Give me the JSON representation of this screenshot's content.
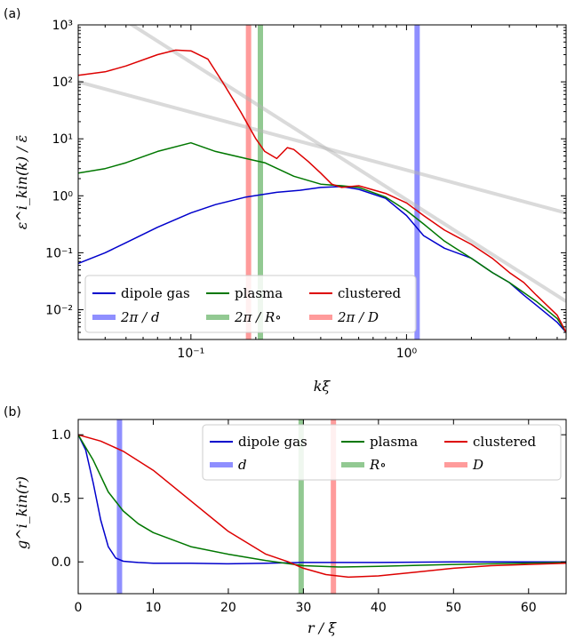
{
  "chart_data": [
    {
      "type": "line",
      "panel_label": "(a)",
      "xlabel": "kξ",
      "ylabel": "ε^i_kin(k) / ε̄",
      "xscale": "log",
      "yscale": "log",
      "xlim": [
        0.03,
        5.5
      ],
      "ylim": [
        0.003,
        1000
      ],
      "x_ticks": [
        {
          "v": 0.1,
          "label": "10⁻¹"
        },
        {
          "v": 1,
          "label": "10⁰"
        }
      ],
      "y_ticks": [
        {
          "v": 1000,
          "label": "10³"
        },
        {
          "v": 100,
          "label": "10²"
        },
        {
          "v": 10,
          "label": "10¹"
        },
        {
          "v": 1,
          "label": "10⁰"
        },
        {
          "v": 0.1,
          "label": "10⁻¹"
        },
        {
          "v": 0.01,
          "label": "10⁻²"
        }
      ],
      "grid": false,
      "legend_position": "lower-left",
      "series": [
        {
          "name": "dipole gas",
          "color": "#0000cc",
          "x": [
            0.03,
            0.04,
            0.05,
            0.07,
            0.1,
            0.13,
            0.18,
            0.25,
            0.32,
            0.4,
            0.5,
            0.6,
            0.8,
            1.0,
            1.2,
            1.5,
            2.0,
            2.5,
            3.0,
            3.5,
            4.0,
            5.0,
            5.5
          ],
          "y": [
            0.065,
            0.1,
            0.15,
            0.28,
            0.5,
            0.7,
            0.95,
            1.15,
            1.25,
            1.4,
            1.45,
            1.3,
            0.9,
            0.45,
            0.2,
            0.12,
            0.08,
            0.045,
            0.03,
            0.018,
            0.012,
            0.006,
            0.004
          ]
        },
        {
          "name": "plasma",
          "color": "#007700",
          "x": [
            0.03,
            0.04,
            0.05,
            0.07,
            0.1,
            0.13,
            0.18,
            0.22,
            0.3,
            0.4,
            0.5,
            0.6,
            0.8,
            1.0,
            1.2,
            1.5,
            2.0,
            2.5,
            3.0,
            3.5,
            4.0,
            5.0,
            5.5
          ],
          "y": [
            2.5,
            3.0,
            3.8,
            6.0,
            8.5,
            6.0,
            4.5,
            3.8,
            2.2,
            1.6,
            1.5,
            1.4,
            0.95,
            0.55,
            0.32,
            0.16,
            0.08,
            0.045,
            0.03,
            0.02,
            0.014,
            0.007,
            0.004
          ]
        },
        {
          "name": "clustered",
          "color": "#dd0000",
          "x": [
            0.03,
            0.04,
            0.05,
            0.07,
            0.085,
            0.1,
            0.12,
            0.14,
            0.17,
            0.2,
            0.22,
            0.25,
            0.28,
            0.3,
            0.35,
            0.4,
            0.45,
            0.5,
            0.6,
            0.8,
            1.0,
            1.2,
            1.5,
            2.0,
            2.5,
            3.0,
            3.5,
            4.0,
            5.0,
            5.5
          ],
          "y": [
            130,
            150,
            190,
            300,
            360,
            350,
            250,
            100,
            30,
            10,
            6,
            4.5,
            7,
            6.5,
            4,
            2.5,
            1.6,
            1.4,
            1.5,
            1.1,
            0.75,
            0.45,
            0.25,
            0.14,
            0.08,
            0.045,
            0.03,
            0.018,
            0.008,
            0.004
          ]
        }
      ],
      "reference_lines": [
        {
          "x": [
            0.03,
            5.5
          ],
          "y": [
            4000,
            0.014
          ],
          "color": "#b5b5b5"
        },
        {
          "x": [
            0.03,
            5.5
          ],
          "y": [
            100,
            0.5
          ],
          "color": "#b5b5b5"
        }
      ],
      "vertical_lines": [
        {
          "name": "2π / d",
          "x": 1.12,
          "color": "#7b7bff"
        },
        {
          "name": "2π / R∘",
          "x": 0.21,
          "color": "#7fbf7f"
        },
        {
          "name": "2π / D",
          "x": 0.185,
          "color": "#ff8a8a"
        }
      ]
    },
    {
      "type": "line",
      "panel_label": "(b)",
      "xlabel": "r / ξ",
      "ylabel": "g^i_kin(r)",
      "xlim": [
        0,
        65
      ],
      "ylim": [
        -0.25,
        1.12
      ],
      "x_ticks": [
        {
          "v": 0,
          "label": "0"
        },
        {
          "v": 10,
          "label": "10"
        },
        {
          "v": 20,
          "label": "20"
        },
        {
          "v": 30,
          "label": "30"
        },
        {
          "v": 40,
          "label": "40"
        },
        {
          "v": 50,
          "label": "50"
        },
        {
          "v": 60,
          "label": "60"
        }
      ],
      "y_ticks": [
        {
          "v": 0,
          "label": "0.0"
        },
        {
          "v": 0.5,
          "label": "0.5"
        },
        {
          "v": 1.0,
          "label": "1.0"
        }
      ],
      "grid": false,
      "legend_position": "top-right",
      "series": [
        {
          "name": "dipole gas",
          "color": "#0000cc",
          "x": [
            0,
            1,
            2,
            3,
            4,
            5,
            6,
            7,
            8,
            10,
            15,
            20,
            25,
            30,
            40,
            50,
            65
          ],
          "y": [
            1.0,
            0.88,
            0.62,
            0.33,
            0.12,
            0.03,
            0.005,
            0.0,
            -0.005,
            -0.01,
            -0.01,
            -0.015,
            -0.01,
            -0.005,
            -0.005,
            0.0,
            0.0
          ]
        },
        {
          "name": "plasma",
          "color": "#007700",
          "x": [
            0,
            2,
            4,
            6,
            8,
            10,
            15,
            20,
            25,
            30,
            35,
            40,
            50,
            65
          ],
          "y": [
            1.0,
            0.8,
            0.55,
            0.4,
            0.3,
            0.23,
            0.12,
            0.06,
            0.01,
            -0.03,
            -0.04,
            -0.035,
            -0.02,
            -0.005
          ]
        },
        {
          "name": "clustered",
          "color": "#dd0000",
          "x": [
            0,
            3,
            6,
            10,
            15,
            20,
            25,
            28,
            30,
            33,
            36,
            40,
            45,
            50,
            55,
            65
          ],
          "y": [
            1.0,
            0.95,
            0.87,
            0.72,
            0.48,
            0.24,
            0.06,
            0.0,
            -0.05,
            -0.1,
            -0.12,
            -0.11,
            -0.08,
            -0.05,
            -0.03,
            -0.01
          ]
        }
      ],
      "vertical_lines": [
        {
          "name": "d",
          "x": 5.5,
          "color": "#7b7bff"
        },
        {
          "name": "R∘",
          "x": 29.7,
          "color": "#7fbf7f"
        },
        {
          "name": "D",
          "x": 34,
          "color": "#ff8a8a"
        }
      ]
    }
  ]
}
